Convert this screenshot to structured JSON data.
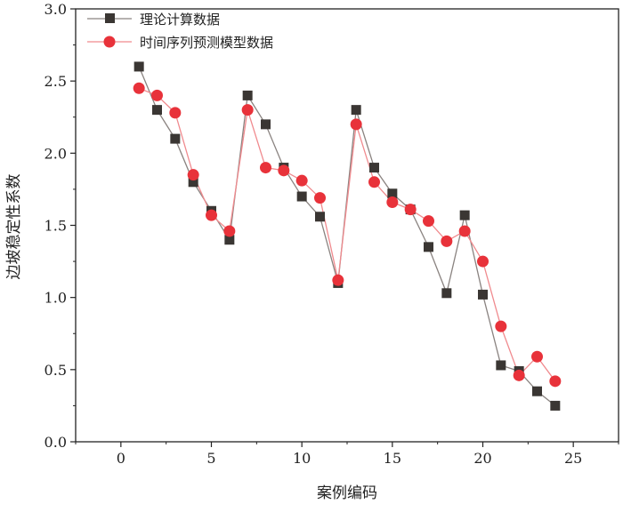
{
  "chart_data": {
    "type": "line",
    "title": "",
    "xlabel": "案例编码",
    "ylabel": "边坡稳定性系数",
    "xlim": [
      -2.5,
      27.5
    ],
    "ylim": [
      0,
      3.0
    ],
    "xticks": [
      0,
      5,
      10,
      15,
      20,
      25
    ],
    "yticks": [
      0.0,
      0.5,
      1.0,
      1.5,
      2.0,
      2.5,
      3.0
    ],
    "xtick_labels": [
      "0",
      "5",
      "10",
      "15",
      "20",
      "25"
    ],
    "ytick_labels": [
      "0.0",
      "0.5",
      "1.0",
      "1.5",
      "2.0",
      "2.5",
      "3.0"
    ],
    "grid": false,
    "legend_position": "top-left",
    "x": [
      1,
      2,
      3,
      4,
      5,
      6,
      7,
      8,
      9,
      10,
      11,
      12,
      13,
      14,
      15,
      16,
      17,
      18,
      19,
      20,
      21,
      22,
      23,
      24
    ],
    "series": [
      {
        "name": "理论计算数据",
        "color": "#3a3633",
        "marker": "square",
        "values": [
          2.6,
          2.3,
          2.1,
          1.8,
          1.6,
          1.4,
          2.4,
          2.2,
          1.9,
          1.7,
          1.56,
          1.1,
          2.3,
          1.9,
          1.72,
          1.61,
          1.35,
          1.03,
          1.57,
          1.02,
          0.53,
          0.49,
          0.35,
          0.25
        ]
      },
      {
        "name": "时间序列预测模型数据",
        "color": "#e8323a",
        "marker": "circle",
        "values": [
          2.45,
          2.4,
          2.28,
          1.85,
          1.57,
          1.46,
          2.3,
          1.9,
          1.88,
          1.81,
          1.69,
          1.12,
          2.2,
          1.8,
          1.66,
          1.61,
          1.53,
          1.39,
          1.46,
          1.25,
          0.8,
          0.46,
          0.59,
          0.42
        ]
      }
    ]
  }
}
